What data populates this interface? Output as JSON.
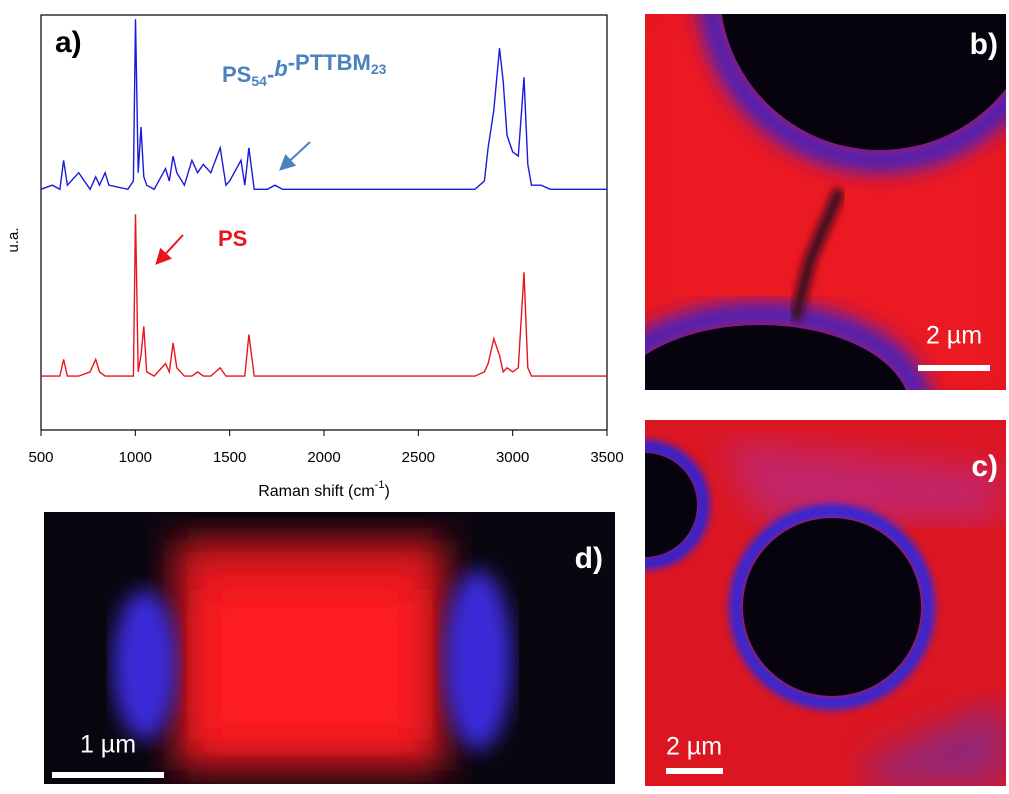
{
  "chart_data": {
    "type": "line",
    "panel_label": "a)",
    "xlabel_parts": [
      "Raman shift (cm",
      "-1",
      ")"
    ],
    "ylabel": "u.a.",
    "xlim": [
      500,
      3500
    ],
    "xticks": [
      500,
      1000,
      1500,
      2000,
      2500,
      3000,
      3500
    ],
    "ylim": [
      0,
      100
    ],
    "x": [
      500,
      560,
      600,
      620,
      640,
      700,
      760,
      790,
      810,
      840,
      860,
      960,
      990,
      1001,
      1015,
      1030,
      1045,
      1060,
      1100,
      1160,
      1180,
      1200,
      1220,
      1260,
      1300,
      1330,
      1360,
      1400,
      1450,
      1480,
      1500,
      1560,
      1580,
      1602,
      1630,
      1700,
      1740,
      1780,
      2000,
      2500,
      2800,
      2850,
      2870,
      2900,
      2930,
      2950,
      2970,
      3000,
      3030,
      3060,
      3080,
      3100,
      3150,
      3200,
      3300,
      3500
    ],
    "series": [
      {
        "label_parts": [
          "PS",
          "54",
          "-",
          "b",
          "-PTTBM",
          "23"
        ],
        "color": "#1a1adc",
        "label_color": "#4a82c0",
        "values": [
          58,
          59,
          58,
          65,
          59,
          62,
          58,
          61,
          59,
          62,
          59,
          58,
          60,
          99,
          62,
          73,
          61,
          59,
          58,
          63,
          60,
          66,
          62,
          59,
          65,
          62,
          64,
          62,
          68,
          59,
          60,
          65,
          59,
          68,
          58,
          58,
          59,
          58,
          58,
          58,
          58,
          60,
          68,
          77,
          92,
          84,
          71,
          67,
          66,
          85,
          64,
          59,
          59,
          58,
          58,
          58
        ]
      },
      {
        "label_parts": [
          "PS"
        ],
        "color": "#e8161c",
        "label_color": "#e8161c",
        "values": [
          13,
          13,
          13,
          17,
          13,
          13,
          14,
          17,
          14,
          13,
          13,
          13,
          13,
          52,
          14,
          18,
          25,
          14,
          13,
          16,
          14,
          21,
          15,
          13,
          13,
          14,
          13,
          13,
          15,
          13,
          13,
          13,
          13,
          23,
          13,
          13,
          13,
          13,
          13,
          13,
          13,
          14,
          16,
          22,
          18,
          14,
          15,
          14,
          15,
          38,
          15,
          13,
          13,
          13,
          13,
          13
        ]
      }
    ]
  },
  "panels": [
    {
      "label": "b)",
      "scale_bar": "2 µm"
    },
    {
      "label": "c)",
      "scale_bar": "2 µm"
    },
    {
      "label": "d)",
      "scale_bar": "1 µm"
    }
  ]
}
